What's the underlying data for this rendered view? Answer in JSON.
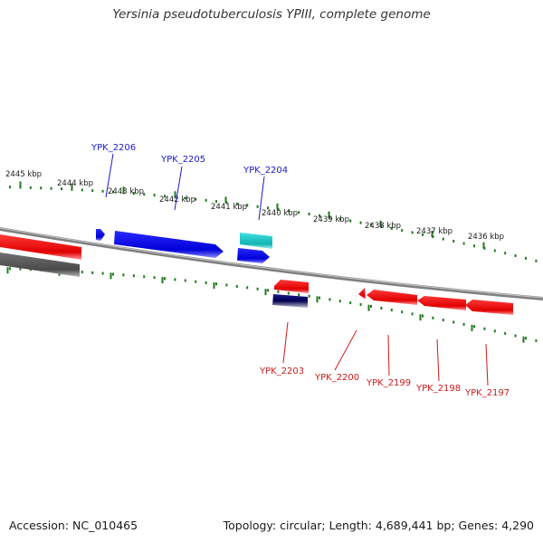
{
  "title": "Yersinia pseudotuberculosis YPIII, complete genome",
  "footer": {
    "accession": "Accession: NC_010465",
    "topology": "Topology: circular; Length: 4,689,441 bp; Genes: 4,290"
  },
  "colors": {
    "backbone": "#8c8c8c",
    "tick": "#1f7a1f",
    "forward_label": "#1a1acc",
    "reverse_label": "#cc1a1a",
    "forward_gene": "#1010e6",
    "reverse_gene": "#e61010",
    "rna_gene": "#18c8c8",
    "pseudo_gene": "#606060",
    "other_gene": "#101070"
  },
  "ticks": [
    {
      "label": "2445 kbp"
    },
    {
      "label": "2444 kbp"
    },
    {
      "label": "2443 kbp"
    },
    {
      "label": "2442 kbp"
    },
    {
      "label": "2441 kbp"
    },
    {
      "label": "2440 kbp"
    },
    {
      "label": "2439 kbp"
    },
    {
      "label": "2438 kbp"
    },
    {
      "label": "2437 kbp"
    },
    {
      "label": "2436 kbp"
    }
  ],
  "forward_genes": [
    {
      "name": "YPK_2206"
    },
    {
      "name": "YPK_2205"
    },
    {
      "name": "YPK_2204"
    }
  ],
  "reverse_genes": [
    {
      "name": "YPK_2203"
    },
    {
      "name": "YPK_2200"
    },
    {
      "name": "YPK_2199"
    },
    {
      "name": "YPK_2198"
    },
    {
      "name": "YPK_2197"
    }
  ]
}
